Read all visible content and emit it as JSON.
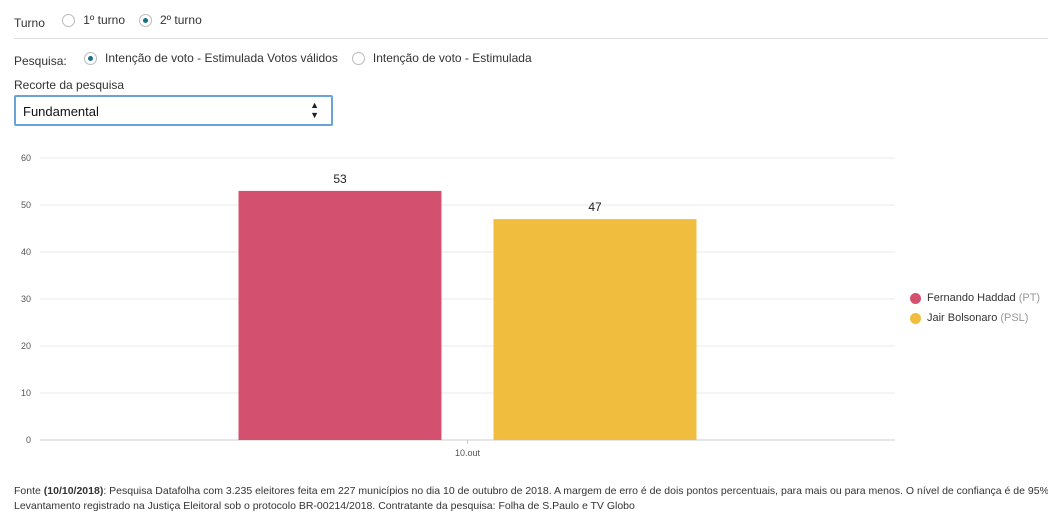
{
  "turno": {
    "label": "Turno",
    "options": [
      "1º turno",
      "2º turno"
    ],
    "selected": 1
  },
  "pesquisa": {
    "label": "Pesquisa:",
    "options": [
      "Intenção de voto - Estimulada Votos válidos",
      "Intenção de voto - Estimulada"
    ],
    "selected": 0
  },
  "recorte": {
    "label": "Recorte da pesquisa",
    "value": "Fundamental"
  },
  "chart_data": {
    "type": "bar",
    "categories": [
      "10.out"
    ],
    "series": [
      {
        "name": "Fernando Haddad",
        "party": "(PT)",
        "color": "#d4506f",
        "values": [
          53
        ]
      },
      {
        "name": "Jair Bolsonaro",
        "party": "(PSL)",
        "color": "#f0bd3e",
        "values": [
          47
        ]
      }
    ],
    "ylim": [
      0,
      60
    ],
    "yticks": [
      0,
      10,
      20,
      30,
      40,
      50,
      60
    ],
    "grid": true,
    "legend": "right"
  },
  "footer": {
    "source_label": "Fonte",
    "source_date": "(10/10/2018)",
    "source_text": ": Pesquisa Datafolha com 3.235 eleitores feita em 227 municípios no dia 10 de outubro de 2018. A margem de erro é de dois pontos percentuais, para mais ou para menos. O nível de confiança é de 95%.",
    "line2": "Levantamento registrado na Justiça Eleitoral sob o protocolo BR-00214/2018. Contratante da pesquisa: Folha de S.Paulo e TV Globo"
  }
}
